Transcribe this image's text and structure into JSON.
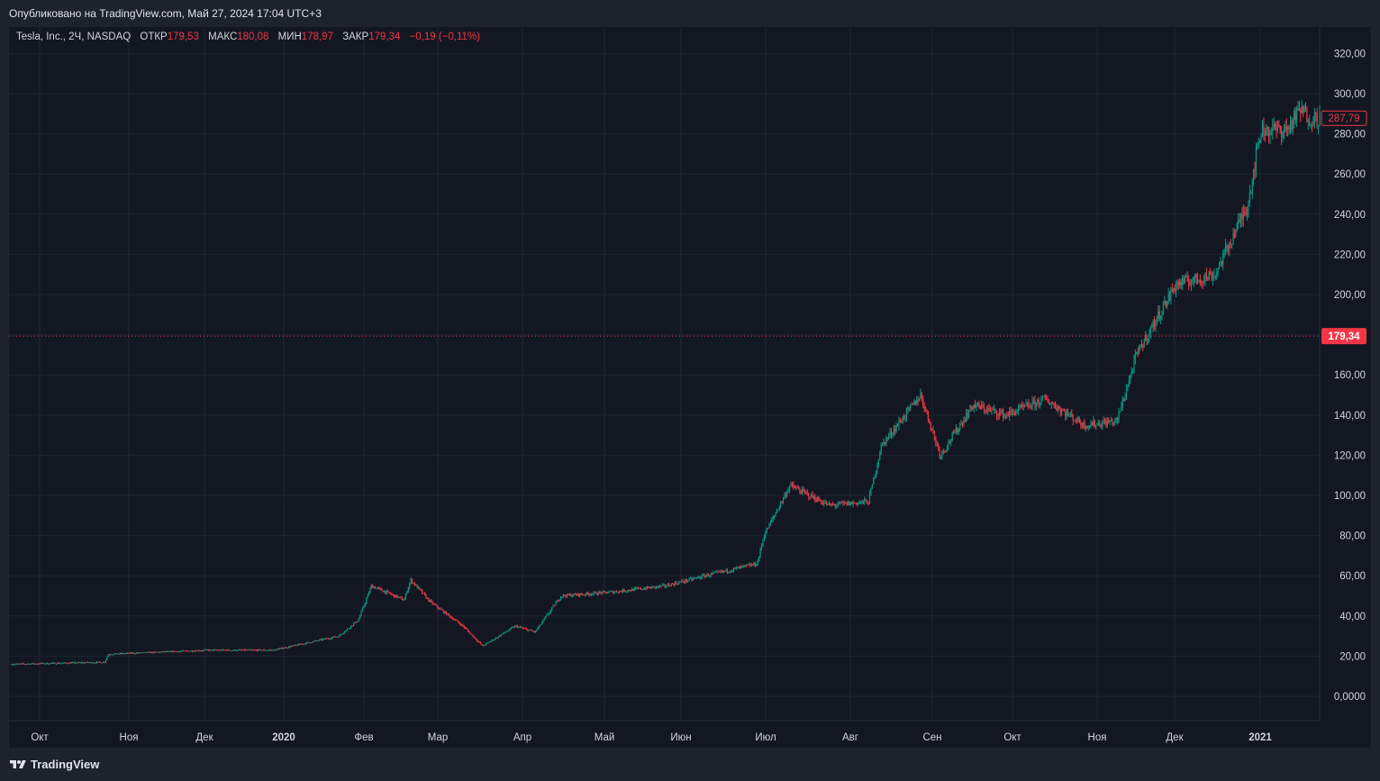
{
  "published": "Опубликовано на TradingView.com, Май 27, 2024 17:04 UTC+3",
  "legend": {
    "symbol": "Tesla, Inc., 2Ч, NASDAQ",
    "open_label": "ОТКР",
    "open": "179,53",
    "high_label": "МАКС",
    "high": "180,08",
    "low_label": "МИН",
    "low": "178,97",
    "close_label": "ЗАКР",
    "close": "179,34",
    "change": "−0,19 (−0,11%)"
  },
  "footer": {
    "brand": "TradingView"
  },
  "colors": {
    "up": "#089981",
    "down": "#f23645",
    "background": "#131722",
    "grid": "#1f2431",
    "text": "#d1d4dc"
  },
  "chart_data": {
    "type": "candlestick",
    "ylim": [
      -10,
      330
    ],
    "y_ticks": [
      0,
      20,
      40,
      60,
      80,
      100,
      120,
      140,
      160,
      180,
      200,
      220,
      240,
      260,
      280,
      300,
      320
    ],
    "y_tick_labels": [
      "0,0000",
      "20,00",
      "40,00",
      "60,00",
      "80,00",
      "100,00",
      "120,00",
      "140,00",
      "160,00",
      "",
      "200,00",
      "220,00",
      "240,00",
      "260,00",
      "280,00",
      "300,00",
      "320,00"
    ],
    "x_labels": [
      "Окт",
      "Ноя",
      "Дек",
      "2020",
      "Фев",
      "Мар",
      "Апр",
      "Май",
      "Июн",
      "Июл",
      "Авг",
      "Сен",
      "Окт",
      "Ноя",
      "Дек",
      "2021"
    ],
    "x_label_bold": [
      false,
      false,
      false,
      true,
      false,
      false,
      false,
      false,
      false,
      false,
      false,
      false,
      false,
      false,
      false,
      true
    ],
    "price_line": {
      "value": 179.34,
      "label": "179,34"
    },
    "last_value": {
      "value": 287.79,
      "label": "287,79"
    },
    "keypoints": [
      {
        "t": 0,
        "p": 16
      },
      {
        "t": 0.071,
        "p": 17
      },
      {
        "t": 0.074,
        "p": 21
      },
      {
        "t": 0.15,
        "p": 23
      },
      {
        "t": 0.2,
        "p": 23
      },
      {
        "t": 0.25,
        "p": 30
      },
      {
        "t": 0.3,
        "p": 48
      },
      {
        "t": 0.265,
        "p": 38
      },
      {
        "t": 0.265,
        "p": 38
      },
      {
        "t": 0.275,
        "p": 55
      },
      {
        "t": 0.305,
        "p": 58
      },
      {
        "t": 0.32,
        "p": 47
      },
      {
        "t": 0.345,
        "p": 35
      },
      {
        "t": 0.36,
        "p": 25
      },
      {
        "t": 0.385,
        "p": 35
      },
      {
        "t": 0.4,
        "p": 32
      },
      {
        "t": 0.42,
        "p": 50
      },
      {
        "t": 0.46,
        "p": 52
      },
      {
        "t": 0.5,
        "p": 55
      },
      {
        "t": 0.53,
        "p": 60
      },
      {
        "t": 0.57,
        "p": 66
      },
      {
        "t": 0.575,
        "p": 80
      },
      {
        "t": 0.595,
        "p": 105
      },
      {
        "t": 0.625,
        "p": 95
      },
      {
        "t": 0.655,
        "p": 97
      },
      {
        "t": 0.665,
        "p": 125
      },
      {
        "t": 0.695,
        "p": 150
      },
      {
        "t": 0.71,
        "p": 120
      },
      {
        "t": 0.735,
        "p": 145
      },
      {
        "t": 0.76,
        "p": 140
      },
      {
        "t": 0.79,
        "p": 148
      },
      {
        "t": 0.82,
        "p": 135
      },
      {
        "t": 0.845,
        "p": 137
      },
      {
        "t": 0.86,
        "p": 170
      },
      {
        "t": 0.89,
        "p": 205
      },
      {
        "t": 0.92,
        "p": 210
      },
      {
        "t": 0.945,
        "p": 245
      },
      {
        "t": 0.955,
        "p": 282
      },
      {
        "t": 0.975,
        "p": 282
      },
      {
        "t": 0.985,
        "p": 292
      },
      {
        "t": 0.993,
        "p": 287.79
      }
    ]
  }
}
